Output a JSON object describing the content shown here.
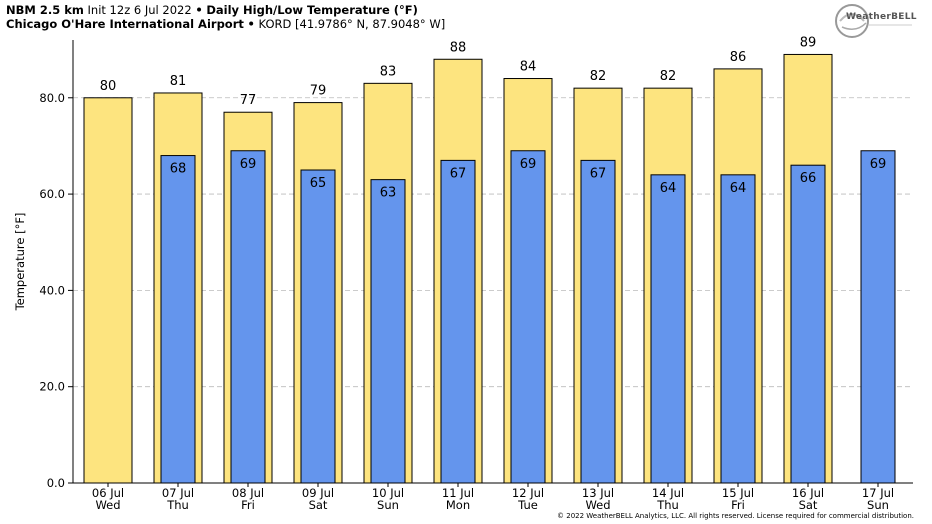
{
  "header": {
    "model": "NBM 2.5 km",
    "init": "Init 12z 6 Jul 2022",
    "bullet": "•",
    "product": "Daily High/Low Temperature (°F)",
    "station": "Chicago O'Hare International Airport",
    "station_info": "KORD [41.9786° N, 87.9048° W]"
  },
  "logo": {
    "text": "WeatherBELL",
    "icon": "swirl-logo-icon"
  },
  "copyright": "© 2022 WeatherBELL Analytics, LLC. All rights reserved. License required for commercial distribution.",
  "colors": {
    "high": "#fde47f",
    "low": "#6495ed",
    "grid": "#bbbbbb"
  },
  "chart_data": {
    "type": "bar",
    "ylabel": "Temperature [°F]",
    "ylim": [
      0,
      92
    ],
    "yticks": [
      "0.0",
      "20.0",
      "40.0",
      "60.0",
      "80.0"
    ],
    "grid": true,
    "categories": [
      "06 Jul",
      "07 Jul",
      "08 Jul",
      "09 Jul",
      "10 Jul",
      "11 Jul",
      "12 Jul",
      "13 Jul",
      "14 Jul",
      "15 Jul",
      "16 Jul",
      "17 Jul"
    ],
    "weekdays": [
      "Wed",
      "Thu",
      "Fri",
      "Sat",
      "Sun",
      "Mon",
      "Tue",
      "Wed",
      "Thu",
      "Fri",
      "Sat",
      "Sun"
    ],
    "series": [
      {
        "key": "high",
        "values": [
          80,
          81,
          77,
          79,
          83,
          88,
          84,
          82,
          82,
          86,
          89,
          null
        ]
      },
      {
        "key": "low",
        "values": [
          null,
          68,
          69,
          65,
          63,
          67,
          69,
          67,
          64,
          64,
          66,
          69
        ]
      }
    ]
  }
}
